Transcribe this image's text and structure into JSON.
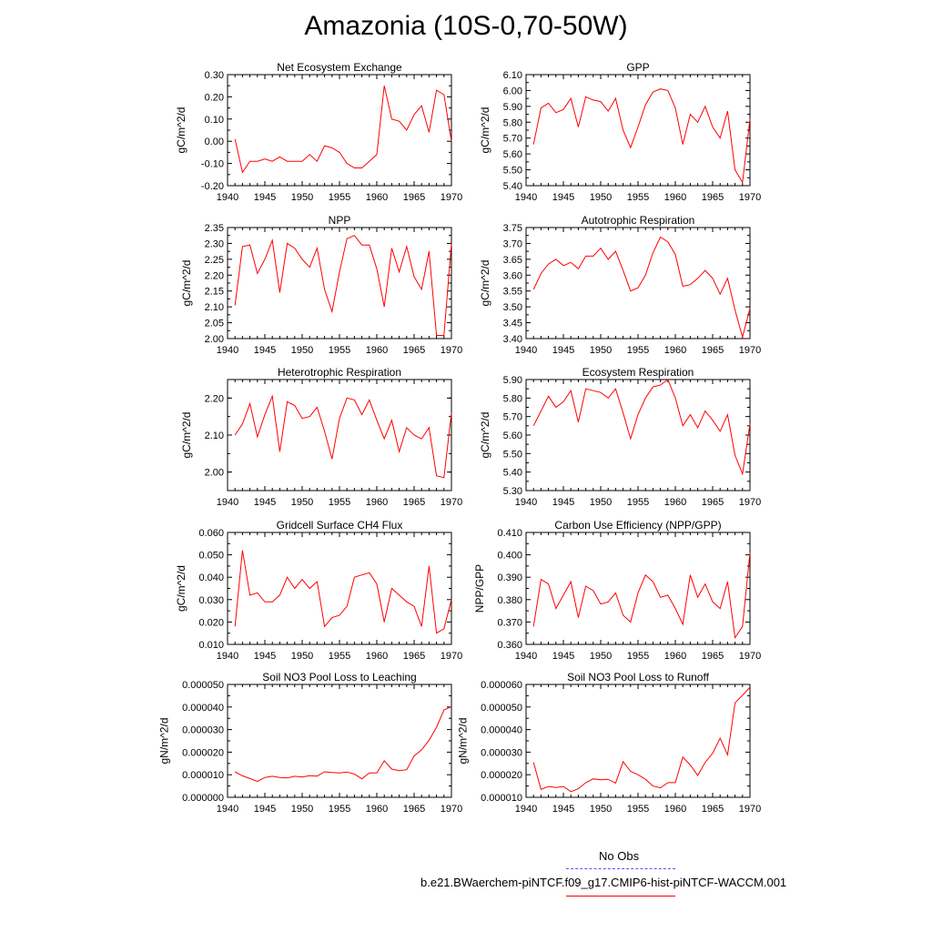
{
  "title": "Amazonia (10S-0,70-50W)",
  "legend": {
    "obs_label": "No Obs",
    "obs_color": "#5555ff",
    "model_label": "b.e21.BWaerchem-piNTCF.f09_g17.CMIP6-hist-piNTCF-WACCM.001",
    "model_color": "#ff0000"
  },
  "chart_data": [
    {
      "type": "line",
      "title": "Net Ecosystem Exchange",
      "ylabel": "gC/m^2/d",
      "xlim": [
        1940,
        1970
      ],
      "ylim": [
        -0.2,
        0.3
      ],
      "xticks": [
        1940,
        1945,
        1950,
        1955,
        1960,
        1965,
        1970
      ],
      "yticks": [
        "-0.20",
        "-0.10",
        "0.00",
        "0.10",
        "0.20",
        "0.30"
      ],
      "series": [
        {
          "color": "#ff0000",
          "x": [
            1941,
            1942,
            1943,
            1944,
            1945,
            1946,
            1947,
            1948,
            1949,
            1950,
            1951,
            1952,
            1953,
            1954,
            1955,
            1956,
            1957,
            1958,
            1959,
            1960,
            1961,
            1962,
            1963,
            1964,
            1965,
            1966,
            1967,
            1968,
            1969,
            1970
          ],
          "values": [
            0.01,
            -0.14,
            -0.09,
            -0.09,
            -0.08,
            -0.09,
            -0.07,
            -0.09,
            -0.09,
            -0.09,
            -0.06,
            -0.09,
            -0.02,
            -0.03,
            -0.05,
            -0.1,
            -0.12,
            -0.12,
            -0.09,
            -0.06,
            0.25,
            0.1,
            0.09,
            0.05,
            0.12,
            0.16,
            0.04,
            0.23,
            0.21,
            0.0
          ]
        }
      ]
    },
    {
      "type": "line",
      "title": "GPP",
      "ylabel": "gC/m^2/d",
      "xlim": [
        1940,
        1970
      ],
      "ylim": [
        5.4,
        6.1
      ],
      "xticks": [
        1940,
        1945,
        1950,
        1955,
        1960,
        1965,
        1970
      ],
      "yticks": [
        "5.40",
        "5.50",
        "5.60",
        "5.70",
        "5.80",
        "5.90",
        "6.00",
        "6.10"
      ],
      "series": [
        {
          "color": "#ff0000",
          "x": [
            1941,
            1942,
            1943,
            1944,
            1945,
            1946,
            1947,
            1948,
            1949,
            1950,
            1951,
            1952,
            1953,
            1954,
            1955,
            1956,
            1957,
            1958,
            1959,
            1960,
            1961,
            1962,
            1963,
            1964,
            1965,
            1966,
            1967,
            1968,
            1969,
            1970
          ],
          "values": [
            5.66,
            5.89,
            5.92,
            5.86,
            5.88,
            5.95,
            5.77,
            5.96,
            5.94,
            5.93,
            5.87,
            5.95,
            5.75,
            5.64,
            5.77,
            5.91,
            5.99,
            6.01,
            6.0,
            5.89,
            5.66,
            5.85,
            5.8,
            5.9,
            5.77,
            5.7,
            5.87,
            5.5,
            5.42,
            5.82
          ]
        }
      ]
    },
    {
      "type": "line",
      "title": "NPP",
      "ylabel": "gC/m^2/d",
      "xlim": [
        1940,
        1970
      ],
      "ylim": [
        2.0,
        2.35
      ],
      "xticks": [
        1940,
        1945,
        1950,
        1955,
        1960,
        1965,
        1970
      ],
      "yticks": [
        "2.00",
        "2.05",
        "2.10",
        "2.15",
        "2.20",
        "2.25",
        "2.30",
        "2.35"
      ],
      "series": [
        {
          "color": "#ff0000",
          "x": [
            1941,
            1942,
            1943,
            1944,
            1945,
            1946,
            1947,
            1948,
            1949,
            1950,
            1951,
            1952,
            1953,
            1954,
            1955,
            1956,
            1957,
            1958,
            1959,
            1960,
            1961,
            1962,
            1963,
            1964,
            1965,
            1966,
            1967,
            1968,
            1969,
            1970
          ],
          "values": [
            2.105,
            2.29,
            2.295,
            2.205,
            2.25,
            2.31,
            2.145,
            2.3,
            2.285,
            2.25,
            2.225,
            2.285,
            2.155,
            2.085,
            2.21,
            2.315,
            2.325,
            2.295,
            2.295,
            2.22,
            2.1,
            2.285,
            2.21,
            2.29,
            2.195,
            2.155,
            2.275,
            2.01,
            2.01,
            2.3
          ]
        }
      ]
    },
    {
      "type": "line",
      "title": "Autotrophic Respiration",
      "ylabel": "gC/m^2/d",
      "xlim": [
        1940,
        1970
      ],
      "ylim": [
        3.4,
        3.75
      ],
      "xticks": [
        1940,
        1945,
        1950,
        1955,
        1960,
        1965,
        1970
      ],
      "yticks": [
        "3.40",
        "3.45",
        "3.50",
        "3.55",
        "3.60",
        "3.65",
        "3.70",
        "3.75"
      ],
      "series": [
        {
          "color": "#ff0000",
          "x": [
            1941,
            1942,
            1943,
            1944,
            1945,
            1946,
            1947,
            1948,
            1949,
            1950,
            1951,
            1952,
            1953,
            1954,
            1955,
            1956,
            1957,
            1958,
            1959,
            1960,
            1961,
            1962,
            1963,
            1964,
            1965,
            1966,
            1967,
            1968,
            1969,
            1970
          ],
          "values": [
            3.555,
            3.605,
            3.635,
            3.65,
            3.63,
            3.64,
            3.62,
            3.66,
            3.66,
            3.685,
            3.65,
            3.675,
            3.615,
            3.55,
            3.56,
            3.6,
            3.67,
            3.72,
            3.705,
            3.665,
            3.565,
            3.57,
            3.59,
            3.615,
            3.59,
            3.54,
            3.59,
            3.49,
            3.405,
            3.495
          ]
        }
      ]
    },
    {
      "type": "line",
      "title": "Heterotrophic Respiration",
      "ylabel": "gC/m^2/d",
      "xlim": [
        1940,
        1970
      ],
      "ylim": [
        1.95,
        2.25
      ],
      "xticks": [
        1940,
        1945,
        1950,
        1955,
        1960,
        1965,
        1970
      ],
      "yticks": [
        "2.00",
        "2.10",
        "2.20"
      ],
      "ytickValues": [
        2.0,
        2.1,
        2.2
      ],
      "minorStep": 0.05,
      "series": [
        {
          "color": "#ff0000",
          "x": [
            1941,
            1942,
            1943,
            1944,
            1945,
            1946,
            1947,
            1948,
            1949,
            1950,
            1951,
            1952,
            1953,
            1954,
            1955,
            1956,
            1957,
            1958,
            1959,
            1960,
            1961,
            1962,
            1963,
            1964,
            1965,
            1966,
            1967,
            1968,
            1969,
            1970
          ],
          "values": [
            2.1,
            2.13,
            2.185,
            2.095,
            2.155,
            2.205,
            2.055,
            2.19,
            2.18,
            2.145,
            2.15,
            2.175,
            2.11,
            2.035,
            2.145,
            2.2,
            2.195,
            2.155,
            2.195,
            2.14,
            2.09,
            2.14,
            2.055,
            2.12,
            2.1,
            2.09,
            2.12,
            1.99,
            1.985,
            2.16
          ]
        }
      ]
    },
    {
      "type": "line",
      "title": "Ecosystem Respiration",
      "ylabel": "gC/m^2/d",
      "xlim": [
        1940,
        1970
      ],
      "ylim": [
        5.3,
        5.9
      ],
      "xticks": [
        1940,
        1945,
        1950,
        1955,
        1960,
        1965,
        1970
      ],
      "yticks": [
        "5.30",
        "5.40",
        "5.50",
        "5.60",
        "5.70",
        "5.80",
        "5.90"
      ],
      "series": [
        {
          "color": "#ff0000",
          "x": [
            1941,
            1942,
            1943,
            1944,
            1945,
            1946,
            1947,
            1948,
            1949,
            1950,
            1951,
            1952,
            1953,
            1954,
            1955,
            1956,
            1957,
            1958,
            1959,
            1960,
            1961,
            1962,
            1963,
            1964,
            1965,
            1966,
            1967,
            1968,
            1969,
            1970
          ],
          "values": [
            5.65,
            5.73,
            5.81,
            5.75,
            5.78,
            5.84,
            5.67,
            5.85,
            5.84,
            5.83,
            5.8,
            5.85,
            5.72,
            5.58,
            5.71,
            5.8,
            5.86,
            5.87,
            5.9,
            5.8,
            5.65,
            5.71,
            5.64,
            5.73,
            5.68,
            5.62,
            5.71,
            5.49,
            5.39,
            5.66
          ]
        }
      ]
    },
    {
      "type": "line",
      "title": "Gridcell Surface CH4 Flux",
      "ylabel": "gC/m^2/d",
      "xlim": [
        1940,
        1970
      ],
      "ylim": [
        0.01,
        0.06
      ],
      "xticks": [
        1940,
        1945,
        1950,
        1955,
        1960,
        1965,
        1970
      ],
      "yticks": [
        "0.010",
        "0.020",
        "0.030",
        "0.040",
        "0.050",
        "0.060"
      ],
      "series": [
        {
          "color": "#ff0000",
          "x": [
            1941,
            1942,
            1943,
            1944,
            1945,
            1946,
            1947,
            1948,
            1949,
            1950,
            1951,
            1952,
            1953,
            1954,
            1955,
            1956,
            1957,
            1958,
            1959,
            1960,
            1961,
            1962,
            1963,
            1964,
            1965,
            1966,
            1967,
            1968,
            1969,
            1970
          ],
          "values": [
            0.018,
            0.052,
            0.032,
            0.033,
            0.029,
            0.029,
            0.032,
            0.04,
            0.035,
            0.039,
            0.035,
            0.038,
            0.018,
            0.022,
            0.023,
            0.027,
            0.04,
            0.041,
            0.042,
            0.037,
            0.02,
            0.035,
            0.032,
            0.029,
            0.027,
            0.018,
            0.045,
            0.015,
            0.017,
            0.03
          ]
        }
      ]
    },
    {
      "type": "line",
      "title": "Carbon Use Efficiency (NPP/GPP)",
      "ylabel": "NPP/GPP",
      "xlim": [
        1940,
        1970
      ],
      "ylim": [
        0.36,
        0.41
      ],
      "xticks": [
        1940,
        1945,
        1950,
        1955,
        1960,
        1965,
        1970
      ],
      "yticks": [
        "0.360",
        "0.370",
        "0.380",
        "0.390",
        "0.400",
        "0.410"
      ],
      "series": [
        {
          "color": "#ff0000",
          "x": [
            1941,
            1942,
            1943,
            1944,
            1945,
            1946,
            1947,
            1948,
            1949,
            1950,
            1951,
            1952,
            1953,
            1954,
            1955,
            1956,
            1957,
            1958,
            1959,
            1960,
            1961,
            1962,
            1963,
            1964,
            1965,
            1966,
            1967,
            1968,
            1969,
            1970
          ],
          "values": [
            0.368,
            0.389,
            0.387,
            0.376,
            0.382,
            0.388,
            0.372,
            0.386,
            0.384,
            0.378,
            0.379,
            0.383,
            0.373,
            0.37,
            0.383,
            0.391,
            0.388,
            0.381,
            0.382,
            0.376,
            0.369,
            0.391,
            0.381,
            0.387,
            0.379,
            0.376,
            0.388,
            0.363,
            0.368,
            0.401
          ]
        }
      ]
    },
    {
      "type": "line",
      "title": "Soil NO3 Pool Loss to Leaching",
      "ylabel": "gN/m^2/d",
      "xlim": [
        1940,
        1970
      ],
      "ylim": [
        0.0,
        5e-05
      ],
      "xticks": [
        1940,
        1945,
        1950,
        1955,
        1960,
        1965,
        1970
      ],
      "yticks": [
        "0.000000",
        "0.000010",
        "0.000020",
        "0.000030",
        "0.000040",
        "0.000050"
      ],
      "series": [
        {
          "color": "#ff0000",
          "x": [
            1941,
            1942,
            1943,
            1944,
            1945,
            1946,
            1947,
            1948,
            1949,
            1950,
            1951,
            1952,
            1953,
            1954,
            1955,
            1956,
            1957,
            1958,
            1959,
            1960,
            1961,
            1962,
            1963,
            1964,
            1965,
            1966,
            1967,
            1968,
            1969,
            1970
          ],
          "values": [
            1.13e-05,
            9.5e-06,
            8.3e-06,
            7e-06,
            8.8e-06,
            9.3e-06,
            8.8e-06,
            8.6e-06,
            9.3e-06,
            9e-06,
            9.6e-06,
            9.4e-06,
            1.13e-05,
            1.1e-05,
            1.08e-05,
            1.12e-05,
            1.03e-05,
            8.2e-06,
            1.08e-05,
            1.08e-05,
            1.62e-05,
            1.25e-05,
            1.18e-05,
            1.22e-05,
            1.83e-05,
            2.1e-05,
            2.53e-05,
            3.1e-05,
            3.87e-05,
            4.02e-05
          ]
        }
      ]
    },
    {
      "type": "line",
      "title": "Soil NO3 Pool Loss to Runoff",
      "ylabel": "gN/m^2/d",
      "xlim": [
        1940,
        1970
      ],
      "ylim": [
        1e-05,
        6e-05
      ],
      "xticks": [
        1940,
        1945,
        1950,
        1955,
        1960,
        1965,
        1970
      ],
      "yticks": [
        "0.000010",
        "0.000020",
        "0.000030",
        "0.000040",
        "0.000050",
        "0.000060"
      ],
      "series": [
        {
          "color": "#ff0000",
          "x": [
            1941,
            1942,
            1943,
            1944,
            1945,
            1946,
            1947,
            1948,
            1949,
            1950,
            1951,
            1952,
            1953,
            1954,
            1955,
            1956,
            1957,
            1958,
            1959,
            1960,
            1961,
            1962,
            1963,
            1964,
            1965,
            1966,
            1967,
            1968,
            1969,
            1970
          ],
          "values": [
            2.55e-05,
            1.35e-05,
            1.48e-05,
            1.43e-05,
            1.48e-05,
            1.25e-05,
            1.38e-05,
            1.65e-05,
            1.82e-05,
            1.78e-05,
            1.8e-05,
            1.63e-05,
            2.58e-05,
            2.15e-05,
            2e-05,
            1.8e-05,
            1.5e-05,
            1.42e-05,
            1.65e-05,
            1.65e-05,
            2.78e-05,
            2.43e-05,
            1.97e-05,
            2.55e-05,
            2.95e-05,
            3.62e-05,
            2.88e-05,
            5.18e-05,
            5.52e-05,
            5.88e-05
          ]
        }
      ]
    }
  ]
}
